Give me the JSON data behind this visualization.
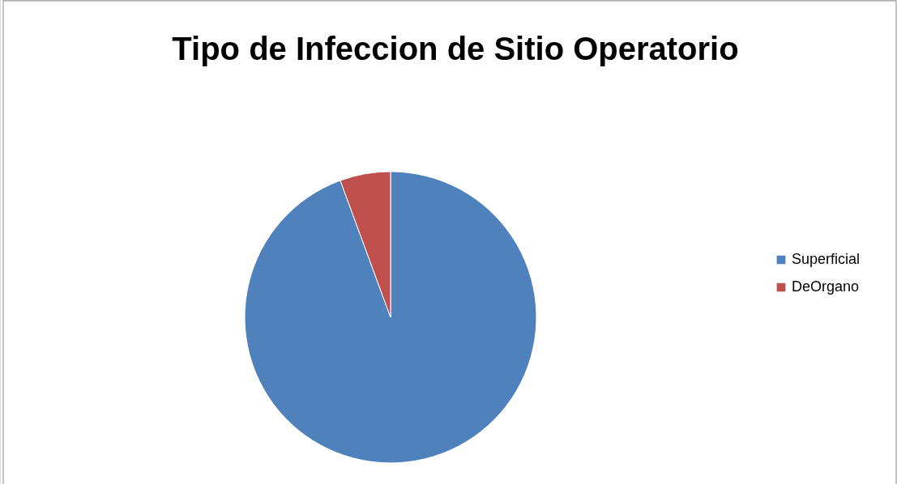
{
  "chart_data": {
    "type": "pie",
    "title": "Tipo de Infeccion de Sitio Operatorio",
    "categories": [
      "Superficial",
      "DeOrgano"
    ],
    "values": [
      94.4,
      5.6
    ],
    "colors": [
      "#4f81bd",
      "#c0504d"
    ],
    "legend": "right"
  }
}
